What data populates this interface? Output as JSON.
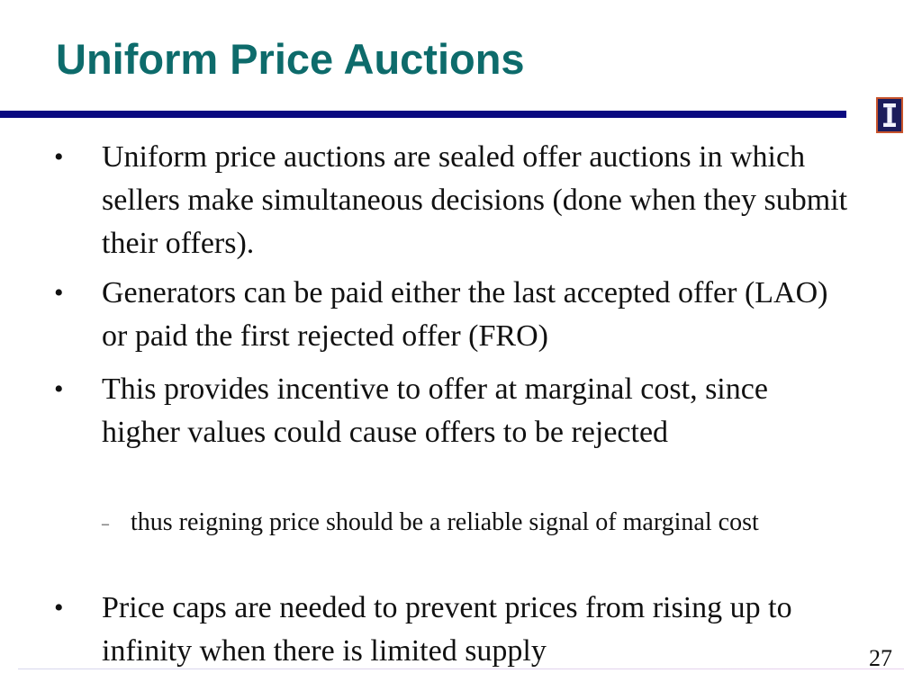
{
  "slide": {
    "title": "Uniform Price Auctions",
    "page_number": "27"
  },
  "bullets": [
    {
      "marker": "•",
      "text": "Uniform price auctions are sealed offer auctions in which sellers make simultaneous decisions (done when they submit their offers)."
    },
    {
      "marker": "•",
      "text": "Generators can be paid either the last accepted offer (LAO) or paid the first rejected offer (FRO)"
    },
    {
      "marker": "•",
      "text": "This provides incentive to offer at marginal cost, since higher values could cause offers to be rejected",
      "sub": {
        "marker": "–",
        "text": "thus reigning price should be a reliable signal of marginal cost"
      }
    },
    {
      "marker": "•",
      "text": "Price caps are needed to prevent prices from rising up to infinity when there is limited supply"
    }
  ],
  "colors": {
    "title": "#0d6b6b",
    "rule": "#0a0a80",
    "logo_fill": "#1c1c5c",
    "logo_border": "#c8542c"
  },
  "icons": {
    "logo": "block-i-logo-icon"
  }
}
